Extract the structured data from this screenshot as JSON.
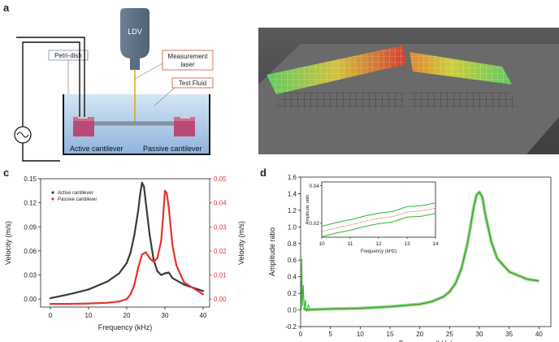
{
  "panels": {
    "a": {
      "letter": "a",
      "labels": {
        "ldv": "LDV",
        "petri": "Petri-dish",
        "laser_line1": "Measurement",
        "laser_line2": "laser",
        "fluid": "Test Fluid",
        "active": "Active cantilever",
        "passive": "Passive cantilever"
      }
    },
    "b": {
      "letter": "b"
    },
    "c": {
      "letter": "c"
    },
    "d": {
      "letter": "d"
    }
  },
  "chart_data": [
    {
      "id": "c",
      "type": "line",
      "xlabel": "Frequency (kHz)",
      "ylabel": "Velocity (m/s)",
      "ylabel_right": "Velocity (m/s)",
      "xlim": [
        0,
        40
      ],
      "ylim": [
        -0.01,
        0.15
      ],
      "ylim_right": [
        -0.0033,
        0.05
      ],
      "x_ticks": [
        0,
        10,
        20,
        30,
        40
      ],
      "y_ticks": [
        "0.00",
        "0.03",
        "0.06",
        "0.09",
        "0.12",
        "0.15"
      ],
      "y_ticks_right": [
        "0.00",
        "0.01",
        "0.02",
        "0.03",
        "0.04",
        "0.05"
      ],
      "legend_position": "top-left",
      "grid": false,
      "colors": {
        "active": "#3a3a3a",
        "passive": "#e8332d",
        "right_axis": "#e8332d"
      },
      "series": [
        {
          "name": "Active cantilever",
          "axis": "left",
          "x": [
            0,
            5,
            10,
            15,
            18,
            20,
            21,
            22,
            23,
            23.5,
            24,
            24.5,
            25,
            26,
            27,
            28,
            29,
            30,
            31,
            32,
            35,
            40
          ],
          "y": [
            0.001,
            0.006,
            0.012,
            0.022,
            0.032,
            0.045,
            0.058,
            0.08,
            0.11,
            0.13,
            0.145,
            0.14,
            0.12,
            0.08,
            0.05,
            0.035,
            0.03,
            0.032,
            0.033,
            0.026,
            0.018,
            0.01
          ]
        },
        {
          "name": "Passive cantilever",
          "axis": "right",
          "x": [
            0,
            5,
            10,
            15,
            18,
            20,
            21,
            22,
            23,
            24,
            25,
            26,
            27,
            28,
            29,
            29.5,
            30,
            30.5,
            31,
            32,
            33,
            35,
            40
          ],
          "y": [
            -0.002,
            -0.002,
            -0.0018,
            -0.0015,
            -0.001,
            0.0,
            0.002,
            0.006,
            0.013,
            0.0185,
            0.0195,
            0.017,
            0.0155,
            0.017,
            0.024,
            0.034,
            0.045,
            0.044,
            0.038,
            0.022,
            0.014,
            0.007,
            0.002
          ]
        }
      ]
    },
    {
      "id": "d",
      "type": "line",
      "xlabel": "Frequency (kHz)",
      "ylabel": "Amplitude ratio",
      "xlim": [
        0,
        42
      ],
      "ylim": [
        -0.2,
        1.6
      ],
      "x_ticks": [
        0,
        5,
        10,
        15,
        20,
        25,
        30,
        35,
        40
      ],
      "y_ticks": [
        "-0.2",
        "0.0",
        "0.2",
        "0.4",
        "0.6",
        "0.8",
        "1.0",
        "1.2",
        "1.4",
        "1.6"
      ],
      "grid": false,
      "colors": {
        "curve": "#2db82d",
        "band": "#5ed65e",
        "mean": "#b0483c"
      },
      "series": [
        {
          "x": [
            0.5,
            1,
            2,
            5,
            10,
            15,
            20,
            22,
            24,
            25,
            26,
            27,
            28,
            28.5,
            29,
            29.5,
            30,
            30.5,
            31,
            32,
            33,
            35,
            38,
            40
          ],
          "y": [
            0.02,
            0.0,
            0.005,
            0.012,
            0.02,
            0.04,
            0.07,
            0.1,
            0.16,
            0.22,
            0.32,
            0.5,
            0.8,
            1.0,
            1.22,
            1.38,
            1.42,
            1.36,
            1.15,
            0.82,
            0.62,
            0.46,
            0.37,
            0.35
          ]
        }
      ],
      "inset": {
        "xlabel": "Frequency (kHz)",
        "ylabel": "Amplitude ratio",
        "xlim": [
          10,
          14
        ],
        "ylim": [
          0.0125,
          0.042
        ],
        "x_ticks": [
          10,
          11,
          12,
          13,
          14
        ],
        "y_ticks": [
          "0.02",
          "0.04"
        ],
        "y_tick_values": [
          0.02,
          0.04
        ],
        "x": [
          10,
          10.5,
          11,
          11.5,
          12,
          12.5,
          13,
          13.5,
          14
        ],
        "y": [
          0.0155,
          0.0175,
          0.019,
          0.021,
          0.0225,
          0.0235,
          0.026,
          0.0265,
          0.028
        ],
        "band": 0.0028
      }
    }
  ]
}
